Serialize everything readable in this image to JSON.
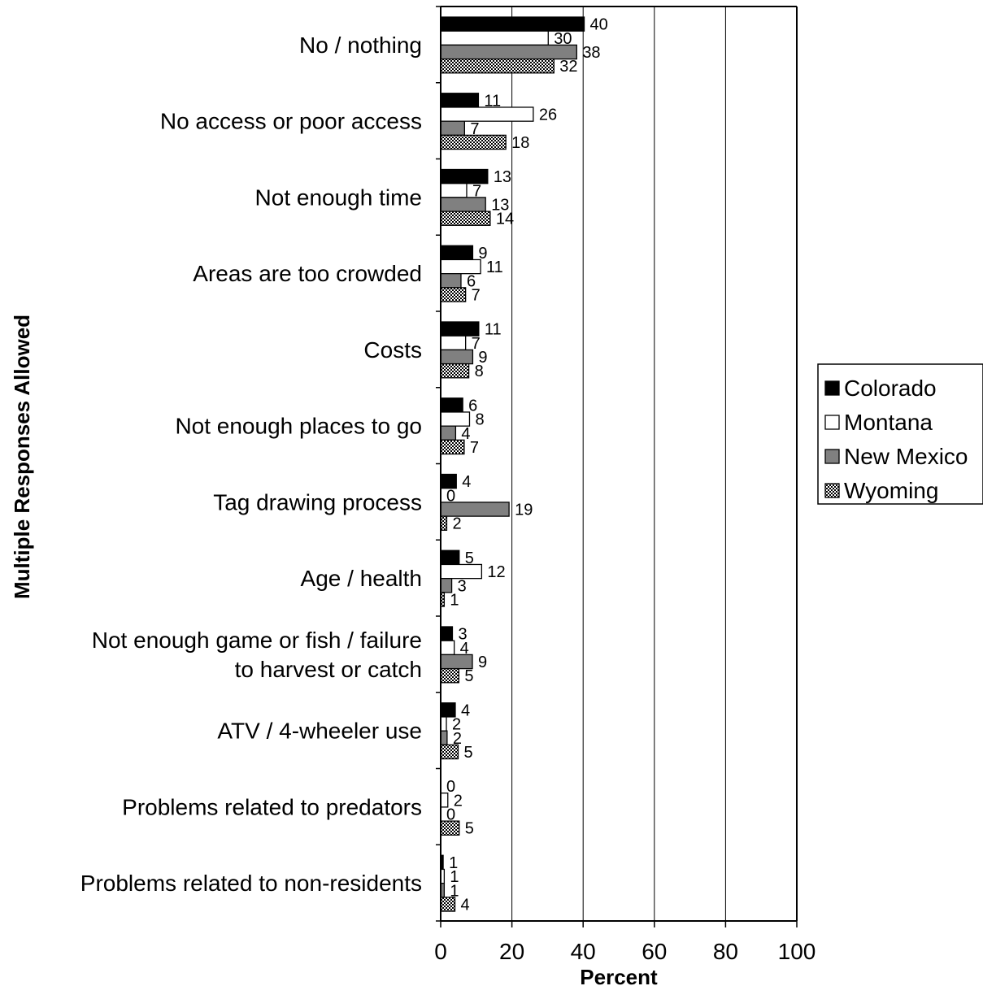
{
  "chart_data": {
    "type": "bar",
    "orientation": "horizontal",
    "title": "",
    "xlabel": "Percent",
    "ylabel": "Multiple Responses Allowed",
    "xlim": [
      0,
      100
    ],
    "xticks": [
      0,
      20,
      40,
      60,
      80,
      100
    ],
    "grid": true,
    "legend_position": "right",
    "categories": [
      "No / nothing",
      "No access or poor access",
      "Not enough time",
      "Areas are too crowded",
      "Costs",
      "Not enough places to go",
      "Tag drawing process",
      "Age / health",
      "Not enough game or fish / failure to harvest or catch",
      "ATV / 4-wheeler use",
      "Problems related to predators",
      "Problems related to non-residents"
    ],
    "category_lines": [
      [
        "No / nothing"
      ],
      [
        "No access or poor access"
      ],
      [
        "Not enough time"
      ],
      [
        "Areas are too crowded"
      ],
      [
        "Costs"
      ],
      [
        "Not enough places to go"
      ],
      [
        "Tag drawing process"
      ],
      [
        "Age / health"
      ],
      [
        "Not enough game or fish / failure",
        "to harvest or catch"
      ],
      [
        "ATV / 4-wheeler use"
      ],
      [
        "Problems related to predators"
      ],
      [
        "Problems related to non-residents"
      ]
    ],
    "series": [
      {
        "name": "Colorado",
        "fill": "#000000",
        "pattern": "solid",
        "values": [
          40.3,
          10.6,
          13.2,
          9.0,
          10.7,
          6.2,
          4.4,
          5.2,
          3.3,
          4.1,
          0.0,
          0.7
        ]
      },
      {
        "name": "Montana",
        "fill": "#ffffff",
        "pattern": "solid",
        "values": [
          30.2,
          26.0,
          7.3,
          11.2,
          7.0,
          8.1,
          0.0,
          11.5,
          3.8,
          1.6,
          2.0,
          1.0
        ]
      },
      {
        "name": "New Mexico",
        "fill": "#808080",
        "pattern": "solid",
        "values": [
          38.2,
          6.7,
          12.6,
          5.7,
          9.0,
          4.2,
          19.2,
          3.1,
          8.9,
          1.8,
          0.0,
          1.0
        ]
      },
      {
        "name": "Wyoming",
        "fill": "#d9d9d9",
        "pattern": "dotted",
        "values": [
          31.8,
          18.3,
          13.9,
          7.0,
          7.9,
          6.6,
          1.7,
          1.0,
          5.1,
          4.9,
          5.2,
          4.0
        ]
      }
    ],
    "data_labels": [
      [
        "40",
        "11",
        "13",
        "9",
        "11",
        "6",
        "4",
        "5",
        "3",
        "4",
        "0",
        "1"
      ],
      [
        "30",
        "26",
        "7",
        "11",
        "7",
        "8",
        "0",
        "12",
        "4",
        "2",
        "2",
        "1"
      ],
      [
        "38",
        "7",
        "13",
        "6",
        "9",
        "4",
        "19",
        "3",
        "9",
        "2",
        "0",
        "1"
      ],
      [
        "32",
        "18",
        "14",
        "7",
        "8",
        "7",
        "2",
        "1",
        "5",
        "5",
        "5",
        "4"
      ]
    ]
  }
}
